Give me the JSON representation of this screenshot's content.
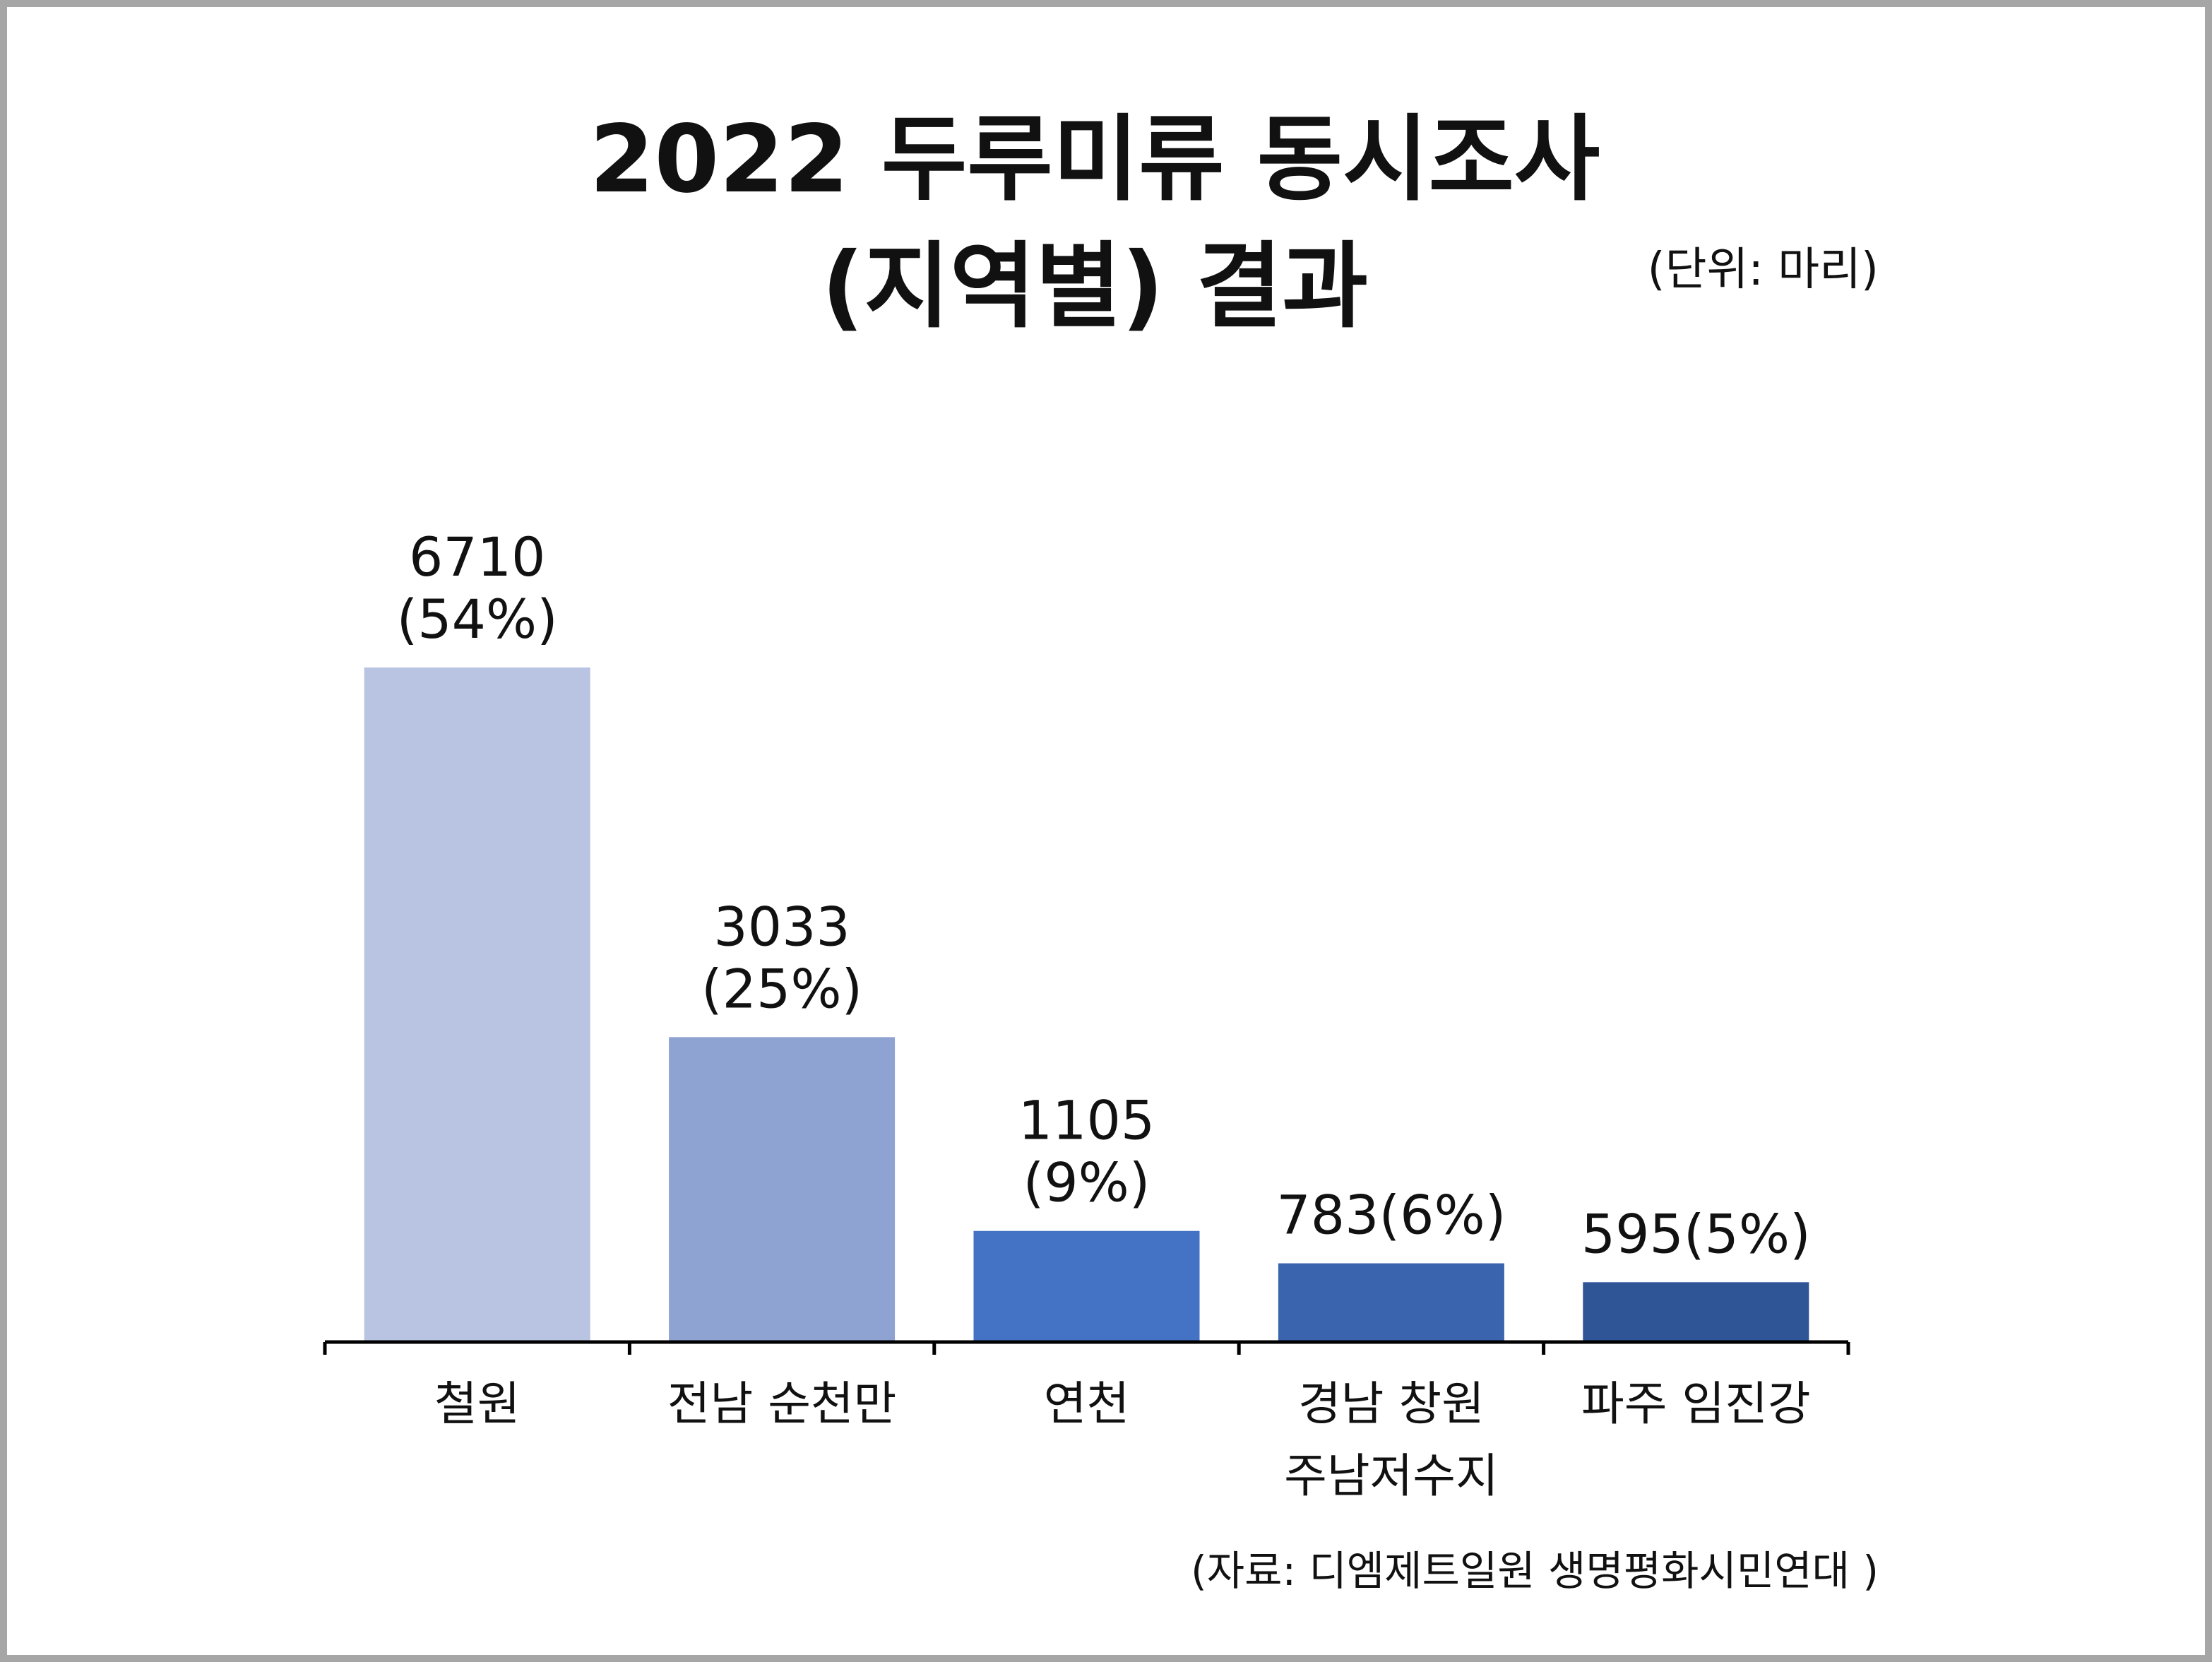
{
  "chart_data": {
    "type": "bar",
    "title": "2022 두루미류 동시조사 (지역별) 결과",
    "title_lines": [
      "2022 두루미류 동시조사",
      "(지역별) 결과"
    ],
    "unit_note": "(단위: 마리)",
    "source_note": "(자료: 디엠제트일원 생명평화시민연대 )",
    "categories": [
      [
        "철원"
      ],
      [
        "전남 순천만"
      ],
      [
        "연천"
      ],
      [
        "경남 창원",
        "주남저수지"
      ],
      [
        "파주 임진강"
      ]
    ],
    "values": [
      6710,
      3033,
      1105,
      783,
      595
    ],
    "data_labels": [
      [
        "6710",
        "(54%)"
      ],
      [
        "3033",
        "(25%)"
      ],
      [
        "1105",
        "(9%)"
      ],
      [
        "783(6%)"
      ],
      [
        "595(5%)"
      ]
    ],
    "colors": [
      "#b9c4e2",
      "#8fa3d2",
      "#4472c4",
      "#3a64ae",
      "#2f5597"
    ],
    "ylim": [
      0,
      6710
    ],
    "grid": false,
    "legend": "none",
    "xlabel": "",
    "ylabel": ""
  }
}
